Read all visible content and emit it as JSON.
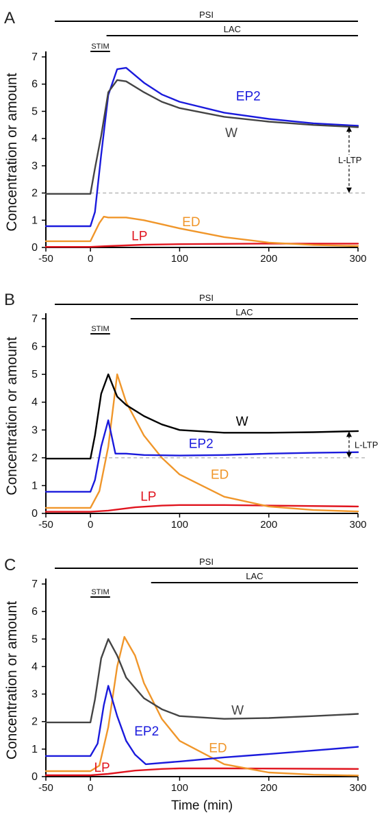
{
  "colors": {
    "W_A": "#444444",
    "W_B": "#000000",
    "W_C": "#444444",
    "EP2": "#1a1adc",
    "ED": "#f0962a",
    "LP": "#e0141e",
    "axis": "#000000",
    "ref": "#999999"
  },
  "chart_data": [
    {
      "type": "line",
      "panel_label": "A",
      "ylabel": "Concentration or amount",
      "xlabel": "",
      "xlim": [
        -50,
        300
      ],
      "ylim": [
        0,
        7
      ],
      "x_ticks": [
        -50,
        0,
        100,
        200,
        300
      ],
      "y_ticks": [
        0,
        1,
        2,
        3,
        4,
        5,
        6,
        7
      ],
      "bars": [
        {
          "name": "PSI",
          "x0": -40,
          "x1": 300
        },
        {
          "name": "LAC",
          "x0": 18,
          "x1": 300
        },
        {
          "name": "STIM",
          "x0": 0,
          "x1": 22
        }
      ],
      "ltp_annotation": {
        "label": "L-LTP",
        "x": 290,
        "y0": 2.0,
        "y1": 4.45
      },
      "reference_line": {
        "y": 2.0,
        "x0": 0,
        "x1": 300
      },
      "series": [
        {
          "name": "W",
          "color_key": "W_A",
          "label_at": [
            158,
            4.05
          ],
          "points": [
            [
              -50,
              1.97
            ],
            [
              0,
              1.97
            ],
            [
              5,
              2.9
            ],
            [
              12,
              4.1
            ],
            [
              20,
              5.7
            ],
            [
              30,
              6.15
            ],
            [
              40,
              6.1
            ],
            [
              60,
              5.7
            ],
            [
              80,
              5.35
            ],
            [
              100,
              5.12
            ],
            [
              150,
              4.8
            ],
            [
              200,
              4.62
            ],
            [
              250,
              4.5
            ],
            [
              300,
              4.42
            ]
          ]
        },
        {
          "name": "EP2",
          "color_key": "EP2",
          "label_at": [
            177,
            5.4
          ],
          "points": [
            [
              -50,
              0.78
            ],
            [
              0,
              0.78
            ],
            [
              5,
              1.3
            ],
            [
              12,
              3.4
            ],
            [
              20,
              5.6
            ],
            [
              30,
              6.55
            ],
            [
              40,
              6.6
            ],
            [
              60,
              6.05
            ],
            [
              80,
              5.62
            ],
            [
              100,
              5.35
            ],
            [
              150,
              4.95
            ],
            [
              200,
              4.72
            ],
            [
              250,
              4.56
            ],
            [
              300,
              4.47
            ]
          ]
        },
        {
          "name": "ED",
          "color_key": "ED",
          "label_at": [
            113,
            0.78
          ],
          "points": [
            [
              -50,
              0.23
            ],
            [
              0,
              0.23
            ],
            [
              10,
              0.9
            ],
            [
              15,
              1.13
            ],
            [
              20,
              1.1
            ],
            [
              40,
              1.1
            ],
            [
              60,
              1.0
            ],
            [
              80,
              0.85
            ],
            [
              100,
              0.7
            ],
            [
              150,
              0.38
            ],
            [
              200,
              0.18
            ],
            [
              250,
              0.09
            ],
            [
              300,
              0.05
            ]
          ]
        },
        {
          "name": "LP",
          "color_key": "LP",
          "label_at": [
            55,
            0.26
          ],
          "points": [
            [
              -50,
              0.02
            ],
            [
              0,
              0.02
            ],
            [
              20,
              0.05
            ],
            [
              60,
              0.1
            ],
            [
              100,
              0.12
            ],
            [
              200,
              0.14
            ],
            [
              300,
              0.14
            ]
          ]
        }
      ]
    },
    {
      "type": "line",
      "panel_label": "B",
      "ylabel": "Concentration or amount",
      "xlabel": "",
      "xlim": [
        -50,
        300
      ],
      "ylim": [
        0,
        7
      ],
      "x_ticks": [
        -50,
        0,
        100,
        200,
        300
      ],
      "y_ticks": [
        0,
        1,
        2,
        3,
        4,
        5,
        6,
        7
      ],
      "bars": [
        {
          "name": "PSI",
          "x0": -40,
          "x1": 300
        },
        {
          "name": "LAC",
          "x0": 45,
          "x1": 300
        },
        {
          "name": "STIM",
          "x0": 0,
          "x1": 22
        }
      ],
      "ltp_annotation": {
        "label": "L-LTP",
        "x": 290,
        "y0": 2.0,
        "y1": 2.95
      },
      "reference_line": {
        "y": 2.0,
        "x0": 0,
        "x1": 300
      },
      "series": [
        {
          "name": "W",
          "color_key": "W_B",
          "label_at": [
            170,
            3.15
          ],
          "points": [
            [
              -50,
              1.97
            ],
            [
              0,
              1.97
            ],
            [
              5,
              2.8
            ],
            [
              12,
              4.3
            ],
            [
              20,
              5.0
            ],
            [
              25,
              4.6
            ],
            [
              30,
              4.2
            ],
            [
              40,
              3.9
            ],
            [
              60,
              3.5
            ],
            [
              80,
              3.2
            ],
            [
              100,
              3.0
            ],
            [
              150,
              2.9
            ],
            [
              200,
              2.9
            ],
            [
              250,
              2.92
            ],
            [
              300,
              2.96
            ]
          ]
        },
        {
          "name": "EP2",
          "color_key": "EP2",
          "label_at": [
            124,
            2.35
          ],
          "points": [
            [
              -50,
              0.78
            ],
            [
              0,
              0.78
            ],
            [
              5,
              1.2
            ],
            [
              12,
              2.4
            ],
            [
              20,
              3.35
            ],
            [
              25,
              2.6
            ],
            [
              28,
              2.15
            ],
            [
              40,
              2.15
            ],
            [
              60,
              2.1
            ],
            [
              100,
              2.08
            ],
            [
              150,
              2.1
            ],
            [
              200,
              2.15
            ],
            [
              250,
              2.18
            ],
            [
              300,
              2.2
            ]
          ]
        },
        {
          "name": "ED",
          "color_key": "ED",
          "label_at": [
            145,
            1.25
          ],
          "points": [
            [
              -50,
              0.2
            ],
            [
              0,
              0.2
            ],
            [
              10,
              0.8
            ],
            [
              20,
              2.4
            ],
            [
              30,
              5.0
            ],
            [
              40,
              4.0
            ],
            [
              60,
              2.8
            ],
            [
              80,
              2.0
            ],
            [
              100,
              1.4
            ],
            [
              150,
              0.6
            ],
            [
              200,
              0.25
            ],
            [
              250,
              0.12
            ],
            [
              300,
              0.07
            ]
          ]
        },
        {
          "name": "LP",
          "color_key": "LP",
          "label_at": [
            65,
            0.45
          ],
          "points": [
            [
              -50,
              0.06
            ],
            [
              0,
              0.06
            ],
            [
              20,
              0.1
            ],
            [
              50,
              0.22
            ],
            [
              80,
              0.28
            ],
            [
              100,
              0.3
            ],
            [
              150,
              0.3
            ],
            [
              200,
              0.28
            ],
            [
              300,
              0.25
            ]
          ]
        }
      ]
    },
    {
      "type": "line",
      "panel_label": "C",
      "ylabel": "Concentration or amount",
      "xlabel": "Time (min)",
      "xlim": [
        -50,
        300
      ],
      "ylim": [
        0,
        7
      ],
      "x_ticks": [
        -50,
        0,
        100,
        200,
        300
      ],
      "y_ticks": [
        0,
        1,
        2,
        3,
        4,
        5,
        6,
        7
      ],
      "bars": [
        {
          "name": "PSI",
          "x0": -40,
          "x1": 300
        },
        {
          "name": "LAC",
          "x0": 68,
          "x1": 300
        },
        {
          "name": "STIM",
          "x0": 0,
          "x1": 22
        }
      ],
      "ltp_annotation": null,
      "reference_line": null,
      "series": [
        {
          "name": "W",
          "color_key": "W_C",
          "label_at": [
            165,
            2.25
          ],
          "points": [
            [
              -50,
              1.97
            ],
            [
              0,
              1.97
            ],
            [
              5,
              2.8
            ],
            [
              12,
              4.3
            ],
            [
              20,
              5.0
            ],
            [
              30,
              4.4
            ],
            [
              40,
              3.6
            ],
            [
              60,
              2.85
            ],
            [
              80,
              2.45
            ],
            [
              100,
              2.2
            ],
            [
              150,
              2.1
            ],
            [
              200,
              2.13
            ],
            [
              250,
              2.2
            ],
            [
              300,
              2.28
            ]
          ]
        },
        {
          "name": "EP2",
          "color_key": "EP2",
          "label_at": [
            63,
            1.5
          ],
          "points": [
            [
              -50,
              0.75
            ],
            [
              0,
              0.75
            ],
            [
              8,
              1.2
            ],
            [
              15,
              2.6
            ],
            [
              20,
              3.3
            ],
            [
              30,
              2.2
            ],
            [
              40,
              1.3
            ],
            [
              50,
              0.8
            ],
            [
              62,
              0.45
            ],
            [
              100,
              0.55
            ],
            [
              150,
              0.7
            ],
            [
              200,
              0.82
            ],
            [
              250,
              0.95
            ],
            [
              300,
              1.08
            ]
          ]
        },
        {
          "name": "ED",
          "color_key": "ED",
          "label_at": [
            143,
            0.88
          ],
          "points": [
            [
              -50,
              0.2
            ],
            [
              0,
              0.2
            ],
            [
              10,
              0.4
            ],
            [
              20,
              1.8
            ],
            [
              30,
              4.0
            ],
            [
              38,
              5.08
            ],
            [
              50,
              4.4
            ],
            [
              60,
              3.4
            ],
            [
              80,
              2.1
            ],
            [
              100,
              1.3
            ],
            [
              150,
              0.45
            ],
            [
              200,
              0.15
            ],
            [
              250,
              0.07
            ],
            [
              300,
              0.04
            ]
          ]
        },
        {
          "name": "LP",
          "color_key": "LP",
          "label_at": [
            13,
            0.17
          ],
          "points": [
            [
              -50,
              0.05
            ],
            [
              0,
              0.05
            ],
            [
              20,
              0.1
            ],
            [
              50,
              0.22
            ],
            [
              80,
              0.28
            ],
            [
              100,
              0.3
            ],
            [
              150,
              0.3
            ],
            [
              300,
              0.28
            ]
          ]
        }
      ]
    }
  ]
}
